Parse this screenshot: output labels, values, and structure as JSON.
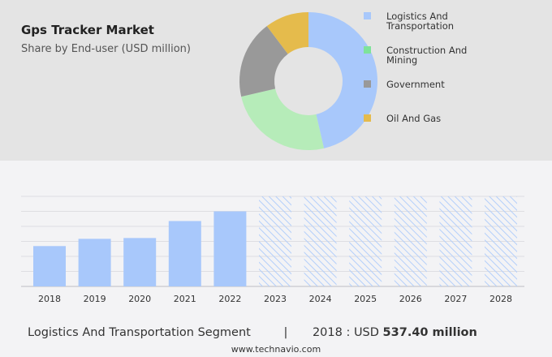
{
  "title": "Gps Tracker Market",
  "subtitle": "Share by End-user (USD million)",
  "legend": [
    {
      "label": "Logistics And Transportation",
      "color": "#a8c8fb"
    },
    {
      "label": "Construction And Mining",
      "color": "#7ee39a"
    },
    {
      "label": "Government",
      "color": "#999999"
    },
    {
      "label": "Oil And Gas",
      "color": "#e5bb4c"
    }
  ],
  "chart_data": [
    {
      "type": "pie",
      "donut": true,
      "title": "Gps Tracker Market",
      "subtitle": "Share by End-user (USD million)",
      "categories": [
        "Logistics And Transportation",
        "Construction And Mining",
        "Government",
        "Oil And Gas"
      ],
      "values": [
        46.4,
        25.0,
        18.3,
        10.3
      ],
      "colors": [
        "#a8c8fb",
        "#b6ecb9",
        "#999999",
        "#e5bb4c"
      ],
      "legend": "right"
    },
    {
      "type": "bar",
      "categories": [
        "2018",
        "2019",
        "2020",
        "2021",
        "2022",
        "2023",
        "2024",
        "2025",
        "2026",
        "2027",
        "2028"
      ],
      "values": [
        537.4,
        634,
        645,
        871,
        1000,
        null,
        null,
        null,
        null,
        null,
        null
      ],
      "forecast_years": [
        "2023",
        "2024",
        "2025",
        "2026",
        "2027",
        "2028"
      ],
      "ylim": [
        0,
        1200
      ],
      "grid": true,
      "color": "#a8c8fb"
    }
  ],
  "footer": {
    "segment": "Logistics And Transportation Segment",
    "sep": "|",
    "year_label": "2018 : USD",
    "value": "537.40 million"
  },
  "site": "www.technavio.com"
}
